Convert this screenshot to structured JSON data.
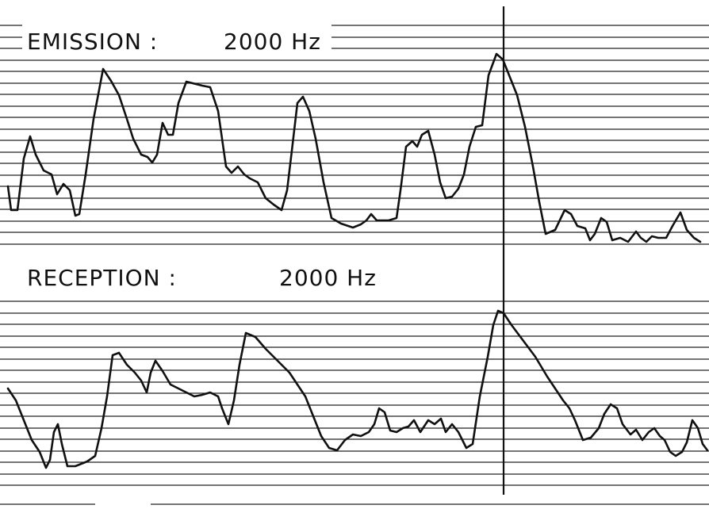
{
  "emission": {
    "label": "EMISSION :",
    "frequency": "2000 Hz"
  },
  "reception": {
    "label": "RECEPTION :",
    "frequency": "2000 Hz"
  }
}
